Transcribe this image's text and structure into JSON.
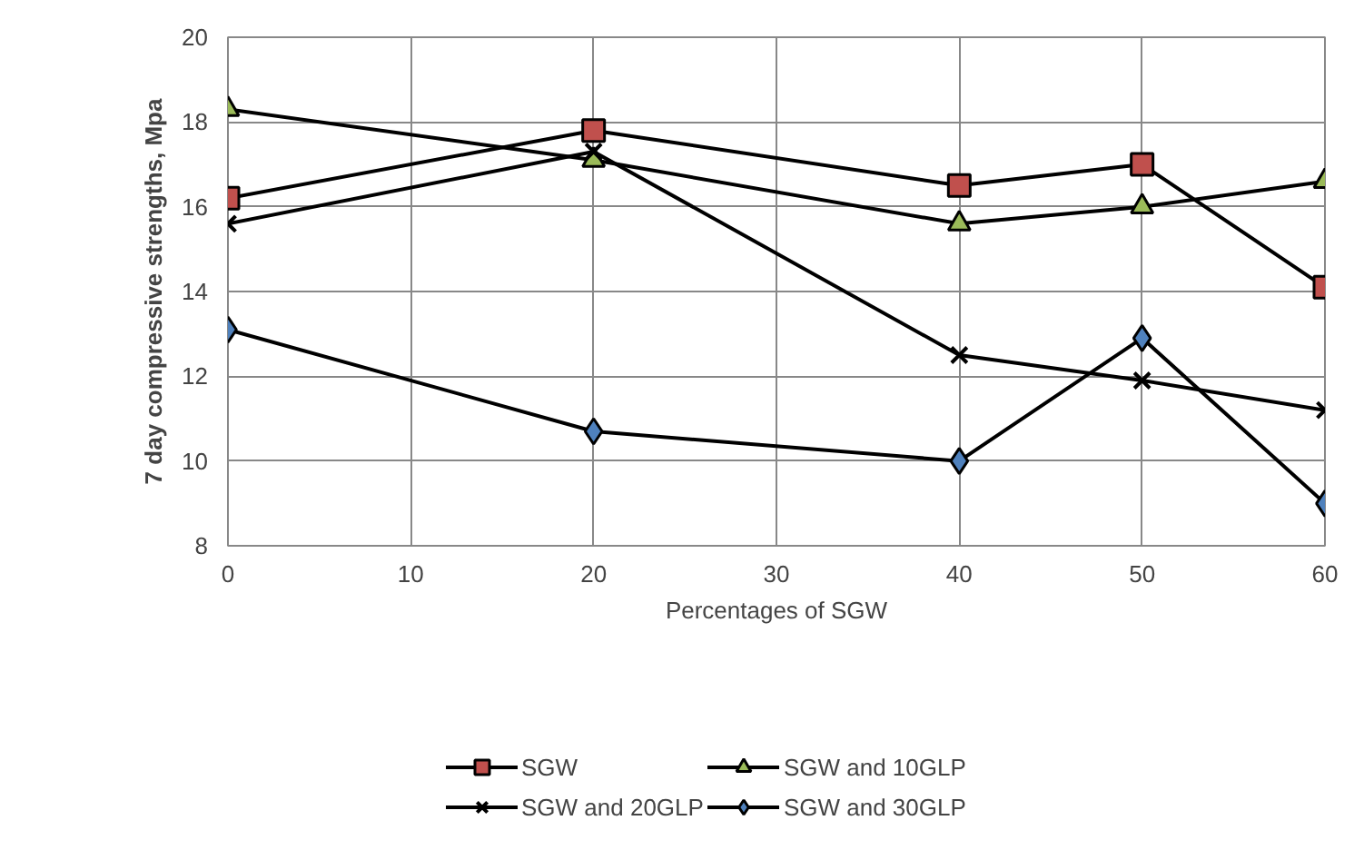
{
  "chart_data": {
    "type": "line",
    "xlabel": "Percentages of SGW",
    "ylabel": "7 day compressive strengths, Mpa",
    "x": [
      0,
      20,
      40,
      50,
      60
    ],
    "series": [
      {
        "name": "SGW",
        "color": "#c0504d",
        "marker": "square",
        "values": [
          16.2,
          17.8,
          16.5,
          17.0,
          14.1
        ]
      },
      {
        "name": "SGW and 10GLP",
        "color": "#9bbb59",
        "marker": "triangle",
        "values": [
          18.3,
          17.1,
          15.6,
          16.0,
          16.6
        ]
      },
      {
        "name": "SGW and 20GLP",
        "color": "#000000",
        "marker": "cross",
        "values": [
          15.6,
          17.3,
          12.5,
          11.9,
          11.2
        ]
      },
      {
        "name": "SGW and 30GLP",
        "color": "#4f81bd",
        "marker": "diamond",
        "values": [
          13.1,
          10.7,
          10.0,
          12.9,
          9.0
        ]
      }
    ],
    "xlim": [
      0,
      60
    ],
    "xticks": [
      0,
      10,
      20,
      30,
      40,
      50,
      60
    ],
    "ylim": [
      8,
      20
    ],
    "yticks": [
      8,
      10,
      12,
      14,
      16,
      18,
      20
    ],
    "grid": true,
    "legend": "bottom",
    "line_style": "solid"
  }
}
